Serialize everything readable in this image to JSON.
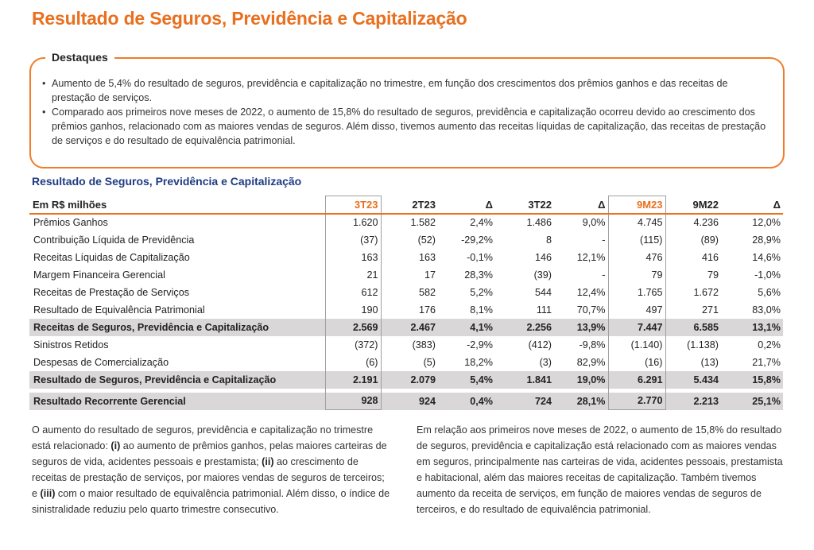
{
  "page_title": "Resultado de Seguros, Previdência e Capitalização",
  "highlights": {
    "title": "Destaques",
    "items": [
      "Aumento de 5,4% do resultado de seguros, previdência e capitalização no trimestre, em função dos crescimentos dos prêmios ganhos e das receitas de prestação de serviços.",
      "Comparado aos primeiros nove meses de 2022, o aumento de 15,8% do resultado de seguros, previdência e capitalização ocorreu devido ao crescimento dos prêmios ganhos, relacionado com as maiores vendas de seguros. Além disso, tivemos aumento das receitas líquidas de capitalização, das receitas de prestação de serviços e do resultado de equivalência patrimonial."
    ]
  },
  "table": {
    "title": "Resultado de Seguros, Previdência e Capitalização",
    "header": [
      "Em R$ milhões",
      "3T23",
      "2T23",
      "Δ",
      "3T22",
      "Δ",
      "9M23",
      "9M22",
      "Δ"
    ],
    "rows": [
      {
        "label": "Prêmios Ganhos",
        "values": [
          "1.620",
          "1.582",
          "2,4%",
          "1.486",
          "9,0%",
          "4.745",
          "4.236",
          "12,0%"
        ]
      },
      {
        "label": "Contribuição Líquida de Previdência",
        "values": [
          "(37)",
          "(52)",
          "-29,2%",
          "8",
          "-",
          "(115)",
          "(89)",
          "28,9%"
        ]
      },
      {
        "label": "Receitas Líquidas de Capitalização",
        "values": [
          "163",
          "163",
          "-0,1%",
          "146",
          "12,1%",
          "476",
          "416",
          "14,6%"
        ]
      },
      {
        "label": "Margem Financeira Gerencial",
        "values": [
          "21",
          "17",
          "28,3%",
          "(39)",
          "-",
          "79",
          "79",
          "-1,0%"
        ]
      },
      {
        "label": "Receitas de Prestação de Serviços",
        "values": [
          "612",
          "582",
          "5,2%",
          "544",
          "12,4%",
          "1.765",
          "1.672",
          "5,6%"
        ]
      },
      {
        "label": "Resultado de Equivalência Patrimonial",
        "values": [
          "190",
          "176",
          "8,1%",
          "111",
          "70,7%",
          "497",
          "271",
          "83,0%"
        ]
      },
      {
        "label": "Receitas de Seguros, Previdência e Capitalização",
        "values": [
          "2.569",
          "2.467",
          "4,1%",
          "2.256",
          "13,9%",
          "7.447",
          "6.585",
          "13,1%"
        ],
        "subtotal": true
      },
      {
        "label": "Sinistros Retidos",
        "values": [
          "(372)",
          "(383)",
          "-2,9%",
          "(412)",
          "-9,8%",
          "(1.140)",
          "(1.138)",
          "0,2%"
        ]
      },
      {
        "label": "Despesas de Comercialização",
        "values": [
          "(6)",
          "(5)",
          "18,2%",
          "(3)",
          "82,9%",
          "(16)",
          "(13)",
          "21,7%"
        ]
      },
      {
        "label": "Resultado de Seguros, Previdência e Capitalização",
        "values": [
          "2.191",
          "2.079",
          "5,4%",
          "1.841",
          "19,0%",
          "6.291",
          "5.434",
          "15,8%"
        ],
        "subtotal": true
      }
    ],
    "last_row": {
      "label": "Resultado Recorrente Gerencial",
      "values": [
        "928",
        "924",
        "0,4%",
        "724",
        "28,1%",
        "2.770",
        "2.213",
        "25,1%"
      ]
    }
  },
  "paragraph_left": {
    "p1": "O aumento do resultado de seguros, previdência e capitalização no trimestre está relacionado: ",
    "m1": "(i)",
    "p2": " ao aumento de prêmios ganhos, pelas maiores carteiras de seguros de vida, acidentes pessoais e prestamista; ",
    "m2": "(ii)",
    "p3": " ao crescimento de receitas de prestação de serviços, por maiores vendas de seguros de terceiros; e ",
    "m3": "(iii)",
    "p4": " com o maior resultado de equivalência patrimonial. Além disso, o índice de sinistralidade reduziu pelo quarto trimestre consecutivo."
  },
  "paragraph_right": "Em relação aos primeiros nove meses de 2022, o aumento de 15,8% do resultado de seguros, previdência e capitalização está relacionado com as maiores vendas em seguros, principalmente nas carteiras de vida, acidentes pessoais, prestamista e habitacional, além das maiores receitas de capitalização. Também tivemos aumento da receita de serviços, em função de maiores vendas de seguros de terceiros, e do resultado de equivalência patrimonial.",
  "colors": {
    "accent": "#e8701f",
    "table_title": "#1f3b82",
    "subtotal_bg": "#d9d7d7"
  }
}
